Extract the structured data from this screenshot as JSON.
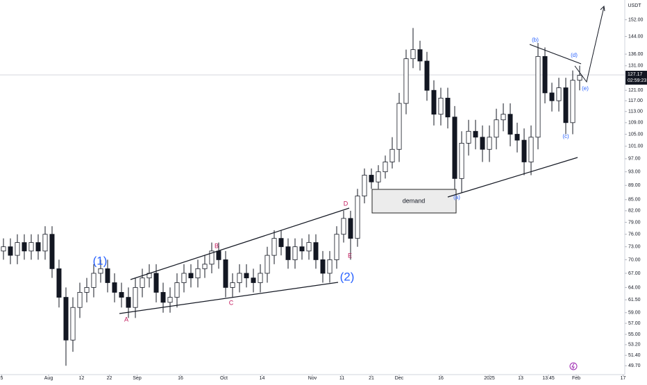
{
  "chart_data": {
    "type": "candlestick",
    "currency": "USDT",
    "log_scale": true,
    "ylim": [
      48.3,
      162
    ],
    "yticks": [
      {
        "value": 49.7,
        "label": "49.70"
      },
      {
        "value": 51.4,
        "label": "51.40"
      },
      {
        "value": 53.2,
        "label": "53.20"
      },
      {
        "value": 55,
        "label": "55.00"
      },
      {
        "value": 57,
        "label": "57.00"
      },
      {
        "value": 59,
        "label": "59.00"
      },
      {
        "value": 61.5,
        "label": "61.50"
      },
      {
        "value": 64,
        "label": "64.00"
      },
      {
        "value": 67,
        "label": "67.00"
      },
      {
        "value": 70,
        "label": "70.00"
      },
      {
        "value": 73,
        "label": "73.00"
      },
      {
        "value": 76,
        "label": "76.00"
      },
      {
        "value": 79,
        "label": "79.00"
      },
      {
        "value": 82,
        "label": "82.00"
      },
      {
        "value": 85,
        "label": "85.00"
      },
      {
        "value": 89,
        "label": "89.00"
      },
      {
        "value": 93,
        "label": "93.00"
      },
      {
        "value": 97,
        "label": "97.00"
      },
      {
        "value": 101,
        "label": "101.00"
      },
      {
        "value": 105,
        "label": "105.00"
      },
      {
        "value": 109,
        "label": "109.00"
      },
      {
        "value": 113,
        "label": "113.00"
      },
      {
        "value": 117,
        "label": "117.00"
      },
      {
        "value": 121,
        "label": "121.00"
      },
      {
        "value": 131,
        "label": "131.00"
      },
      {
        "value": 136,
        "label": "136.00"
      },
      {
        "value": 144,
        "label": "144.00"
      },
      {
        "value": 152,
        "label": "152.00"
      }
    ],
    "xlim": [
      0,
      360
    ],
    "xticks": [
      {
        "value": 1,
        "label": "5"
      },
      {
        "value": 28,
        "label": "Aug"
      },
      {
        "value": 47,
        "label": "12"
      },
      {
        "value": 63,
        "label": "22"
      },
      {
        "value": 79,
        "label": "Sep"
      },
      {
        "value": 104,
        "label": "16"
      },
      {
        "value": 129,
        "label": "Oct"
      },
      {
        "value": 151,
        "label": "14"
      },
      {
        "value": 180,
        "label": "Nov"
      },
      {
        "value": 197,
        "label": "11"
      },
      {
        "value": 214,
        "label": "21"
      },
      {
        "value": 230,
        "label": "Dec"
      },
      {
        "value": 254,
        "label": "16"
      },
      {
        "value": 282,
        "label": "2025"
      },
      {
        "value": 300,
        "label": "13"
      },
      {
        "value": 316,
        "label": "13:45"
      },
      {
        "value": 332,
        "label": "Feb"
      },
      {
        "value": 359,
        "label": "17"
      }
    ],
    "up_color": "#ffffff",
    "down_color": "#131722",
    "x": [
      2,
      6,
      10,
      14,
      18,
      22,
      26,
      30,
      34,
      38,
      42,
      46,
      50,
      54,
      58,
      62,
      66,
      70,
      74,
      78,
      82,
      86,
      90,
      94,
      98,
      102,
      106,
      110,
      114,
      118,
      122,
      126,
      130,
      134,
      138,
      142,
      146,
      150,
      154,
      158,
      162,
      166,
      170,
      174,
      178,
      182,
      186,
      190,
      194,
      198,
      202,
      206,
      210,
      214,
      218,
      222,
      226,
      230,
      234,
      238,
      242,
      246,
      250,
      254,
      258,
      262,
      266,
      270,
      274,
      278,
      282,
      286,
      290,
      294,
      298,
      302,
      306,
      310,
      314,
      318,
      322,
      326,
      330,
      334
    ],
    "open": [
      72,
      73,
      71,
      74,
      72,
      74,
      72,
      76,
      68,
      62,
      54,
      60,
      63,
      64,
      67,
      68,
      65,
      63,
      62,
      60,
      64,
      66,
      67,
      63,
      61,
      62,
      65,
      67,
      66,
      68,
      69,
      72,
      70,
      64,
      65,
      67,
      66,
      65,
      67,
      71,
      75,
      73,
      70,
      73,
      72,
      74,
      70,
      67,
      70,
      76,
      80,
      75,
      86,
      92,
      90,
      93,
      96,
      100,
      116,
      134,
      138,
      133,
      121,
      112,
      118,
      111,
      91,
      102,
      106,
      104,
      100,
      104,
      110,
      112,
      105,
      103,
      96,
      104,
      135,
      120,
      117,
      122,
      109,
      125
    ],
    "high": [
      75,
      75,
      76,
      76,
      76,
      76,
      78,
      78,
      70,
      64,
      62,
      65,
      66,
      69,
      70,
      70,
      67,
      65,
      64,
      66,
      68,
      69,
      69,
      65,
      64,
      67,
      69,
      69,
      70,
      71,
      74,
      74,
      72,
      67,
      69,
      69,
      68,
      69,
      73,
      77,
      77,
      75,
      75,
      75,
      76,
      76,
      72,
      72,
      78,
      82,
      82,
      88,
      94,
      94,
      95,
      98,
      104,
      120,
      138,
      148,
      142,
      137,
      125,
      122,
      122,
      115,
      106,
      110,
      110,
      108,
      108,
      114,
      116,
      116,
      109,
      107,
      108,
      141,
      139,
      124,
      126,
      126,
      129,
      131
    ],
    "low": [
      70,
      69,
      69,
      70,
      70,
      70,
      70,
      66,
      60,
      49.7,
      52,
      58,
      61,
      62,
      65,
      63,
      61,
      60,
      58,
      58,
      62,
      64,
      61,
      59,
      59,
      60,
      63,
      64,
      64,
      66,
      67,
      68,
      62,
      62,
      63,
      64,
      63,
      63,
      65,
      69,
      71,
      68,
      68,
      70,
      70,
      68,
      65,
      65,
      68,
      74,
      70,
      73,
      84,
      88,
      88,
      91,
      94,
      96,
      112,
      130,
      129,
      117,
      108,
      108,
      107,
      87,
      87,
      98,
      100,
      96,
      96,
      100,
      106,
      101,
      99,
      92,
      92,
      100,
      116,
      113,
      113,
      105,
      105,
      121
    ],
    "close": [
      73,
      71,
      74,
      72,
      74,
      72,
      76,
      68,
      62,
      54,
      60,
      63,
      64,
      67,
      68,
      65,
      63,
      62,
      60,
      64,
      66,
      67,
      63,
      61,
      62,
      65,
      67,
      66,
      68,
      69,
      72,
      70,
      64,
      65,
      67,
      66,
      65,
      67,
      71,
      75,
      73,
      70,
      73,
      72,
      74,
      70,
      67,
      70,
      76,
      80,
      75,
      86,
      92,
      90,
      93,
      96,
      100,
      116,
      134,
      138,
      133,
      121,
      112,
      118,
      111,
      91,
      102,
      106,
      104,
      100,
      104,
      110,
      112,
      105,
      103,
      96,
      104,
      135,
      120,
      117,
      122,
      109,
      125,
      127
    ],
    "last_price": 127.17,
    "countdown": "02:59:23",
    "annotations": [
      "(1)",
      "(2)",
      "A",
      "B",
      "C",
      "D",
      "E",
      "demand",
      "(a)",
      "(b)",
      "(c)",
      "(d)",
      "(e)"
    ]
  }
}
